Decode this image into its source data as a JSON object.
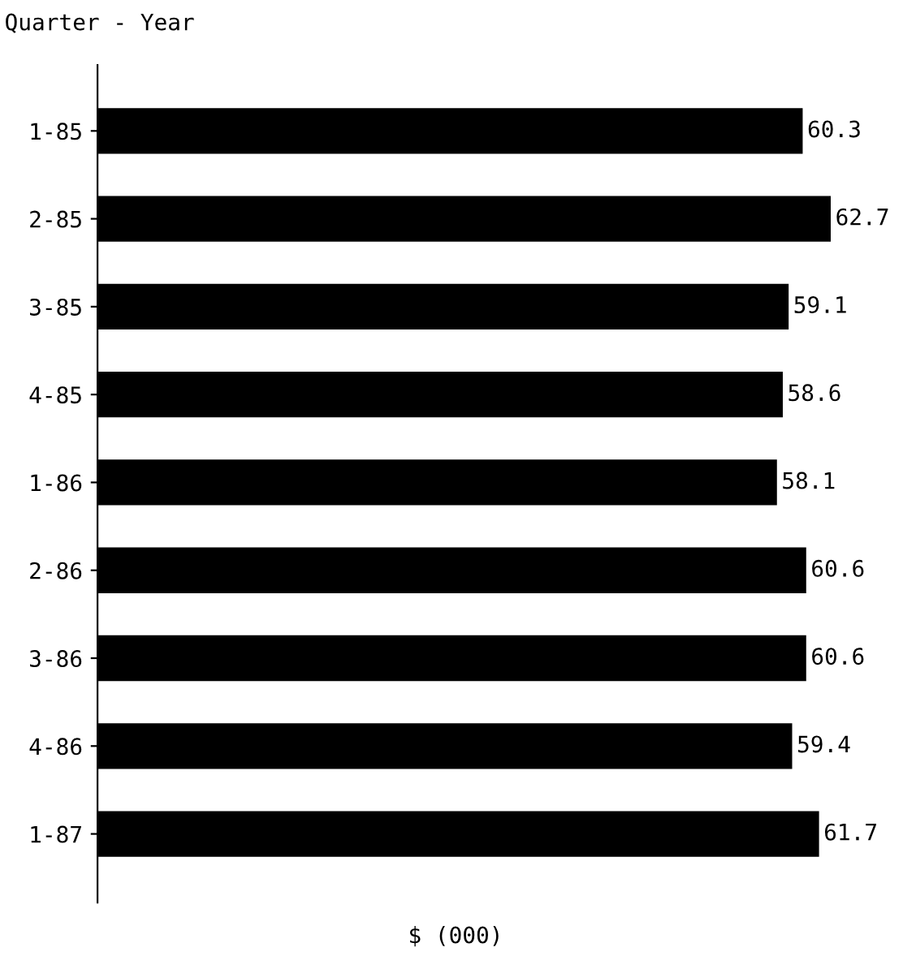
{
  "chart_data": {
    "type": "bar",
    "orientation": "horizontal",
    "ylabel": "Quarter - Year",
    "xlabel": "$ (000)",
    "categories": [
      "1-85",
      "2-85",
      "3-85",
      "4-85",
      "1-86",
      "2-86",
      "3-86",
      "4-86",
      "1-87"
    ],
    "values": [
      60.3,
      62.7,
      59.1,
      58.6,
      58.1,
      60.6,
      60.6,
      59.4,
      61.7
    ],
    "color": "#000000",
    "data_labels": true,
    "tick_labels": "y",
    "grid": false
  }
}
